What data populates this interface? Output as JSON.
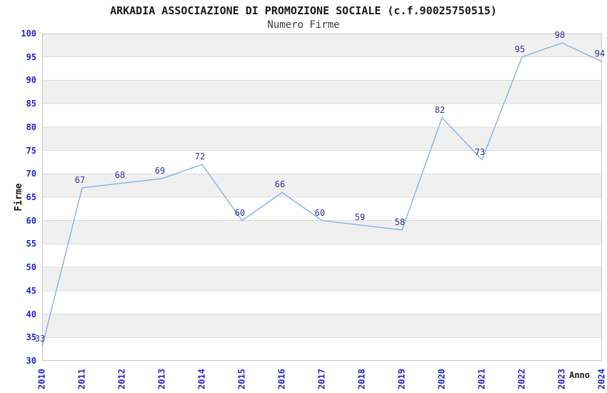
{
  "header": {
    "title": "ARKADIA ASSOCIAZIONE DI PROMOZIONE SOCIALE (c.f.90025750515)",
    "subtitle": "Numero Firme"
  },
  "chart_data": {
    "type": "line",
    "title": "ARKADIA ASSOCIAZIONE DI PROMOZIONE SOCIALE (c.f.90025750515)",
    "subtitle": "Numero Firme",
    "xlabel": "Anno",
    "ylabel": "Firme",
    "x": [
      "2010",
      "2011",
      "2012",
      "2013",
      "2014",
      "2015",
      "2016",
      "2017",
      "2018",
      "2019",
      "2020",
      "2021",
      "2022",
      "2023",
      "2024"
    ],
    "series": [
      {
        "name": "Numero Firme",
        "values": [
          33,
          67,
          68,
          69,
          72,
          60,
          66,
          60,
          59,
          58,
          82,
          73,
          95,
          98,
          94
        ]
      }
    ],
    "ylim": [
      30,
      100
    ],
    "ytick_step": 5,
    "yticks": [
      30,
      35,
      40,
      45,
      50,
      55,
      60,
      65,
      70,
      75,
      80,
      85,
      90,
      95,
      100
    ],
    "grid": true,
    "legend_position": "none",
    "banded_background": true,
    "data_labels_visible": true,
    "colors": {
      "line": "#79ade6",
      "data_label": "#333399",
      "tick_label": "#2222cc",
      "band": "#f0f0f0",
      "gridline": "#dcdcdc",
      "plot_border": "#c6c6c6",
      "title": "#1a1a1a",
      "subtitle": "#3a3a3a",
      "background": "#ffffff"
    }
  }
}
